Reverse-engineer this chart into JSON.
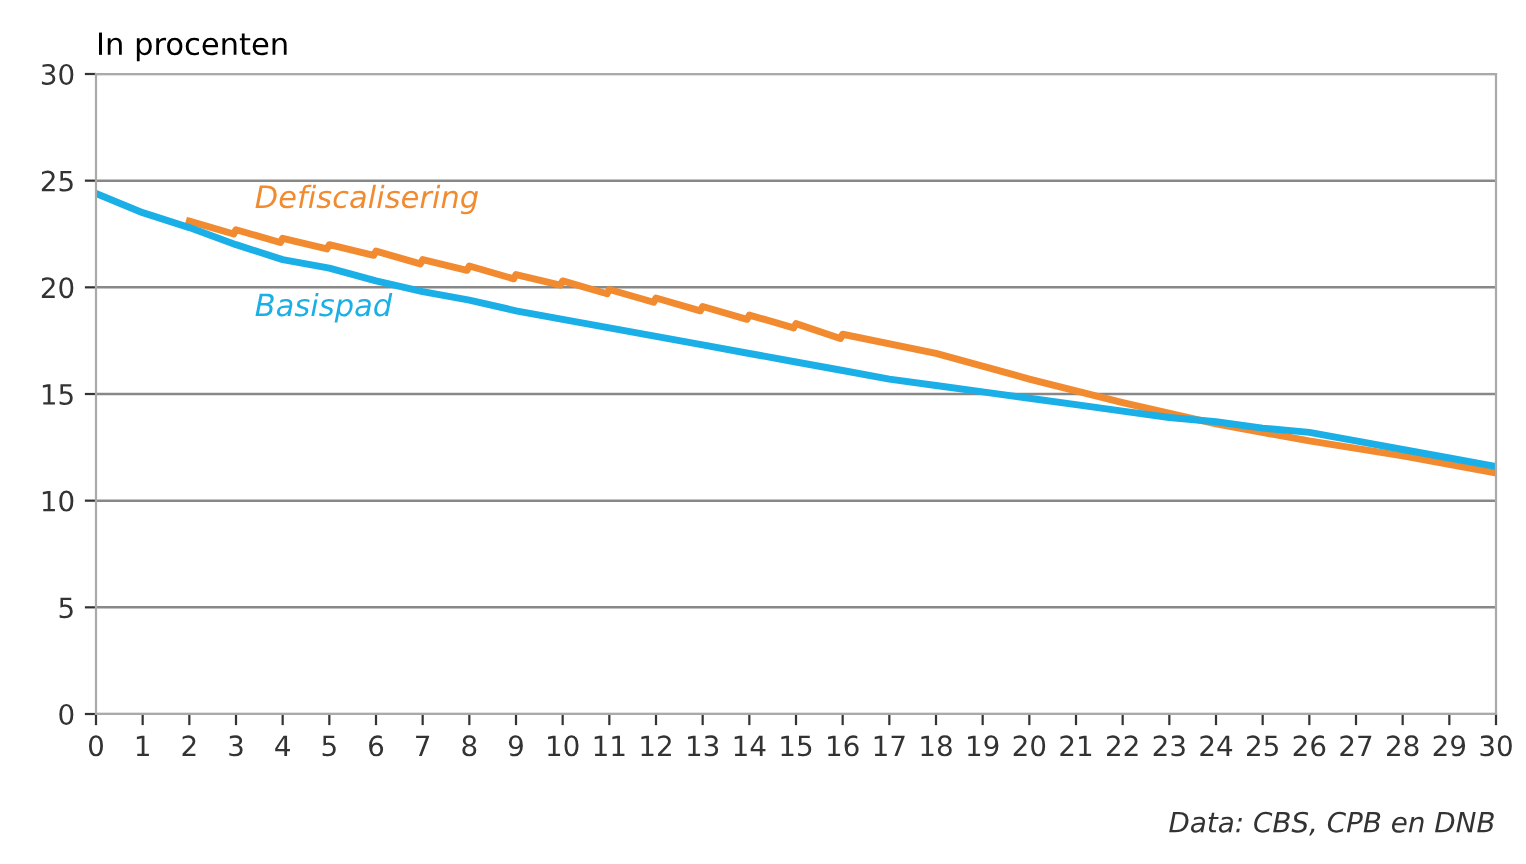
{
  "chart_data": {
    "type": "line",
    "ylabel": "In procenten",
    "xlim": [
      0,
      30
    ],
    "xticks": [
      0,
      1,
      2,
      3,
      4,
      5,
      6,
      7,
      8,
      9,
      10,
      11,
      12,
      13,
      14,
      15,
      16,
      17,
      18,
      19,
      20,
      21,
      22,
      23,
      24,
      25,
      26,
      27,
      28,
      29,
      30
    ],
    "ylim": [
      0,
      30
    ],
    "yticks": [
      0,
      5,
      10,
      15,
      20,
      25,
      30
    ],
    "grid": "y",
    "legend": false,
    "series": [
      {
        "name": "Defiscalisering",
        "color": "#f28a30",
        "x": [
          2,
          2.95,
          3,
          3.95,
          4,
          4.95,
          5,
          5.95,
          6,
          6.95,
          7,
          7.95,
          8,
          8.95,
          9,
          9.95,
          10,
          10.95,
          11,
          11.95,
          12,
          12.95,
          13,
          13.95,
          14,
          14.95,
          15,
          15.95,
          16,
          18,
          20,
          22,
          24,
          26,
          28,
          30
        ],
        "values": [
          23.1,
          22.5,
          22.7,
          22.1,
          22.3,
          21.8,
          22.0,
          21.5,
          21.7,
          21.1,
          21.3,
          20.8,
          21.0,
          20.4,
          20.6,
          20.1,
          20.3,
          19.7,
          19.9,
          19.3,
          19.5,
          18.9,
          19.1,
          18.5,
          18.7,
          18.1,
          18.3,
          17.6,
          17.8,
          16.9,
          15.7,
          14.6,
          13.6,
          12.8,
          12.1,
          11.3
        ]
      },
      {
        "name": "Basispad",
        "color": "#1aafe6",
        "x": [
          0,
          1,
          2,
          3,
          4,
          5,
          6,
          7,
          8,
          9,
          10,
          11,
          12,
          13,
          14,
          15,
          16,
          17,
          18,
          19,
          20,
          21,
          22,
          23,
          24,
          25,
          26,
          27,
          28,
          29,
          30
        ],
        "values": [
          24.4,
          23.5,
          22.8,
          22.0,
          21.3,
          20.9,
          20.3,
          19.8,
          19.4,
          18.9,
          18.5,
          18.1,
          17.7,
          17.3,
          16.9,
          16.5,
          16.1,
          15.7,
          15.4,
          15.1,
          14.8,
          14.5,
          14.2,
          13.9,
          13.7,
          13.4,
          13.2,
          12.8,
          12.4,
          12.0,
          11.6
        ]
      }
    ],
    "annotations": [
      "Data: CBS, CPB en DNB"
    ]
  }
}
